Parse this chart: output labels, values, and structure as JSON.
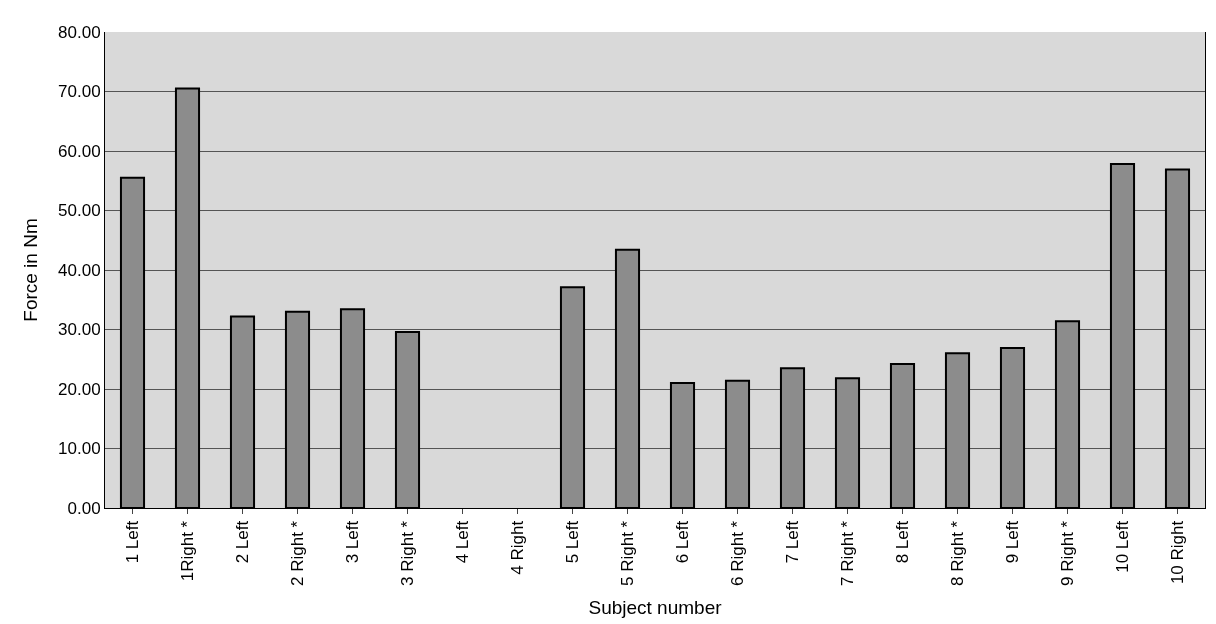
{
  "chart_data": {
    "type": "bar",
    "xlabel": "Subject number",
    "ylabel": "Force in Nm",
    "categories": [
      "1 Left",
      "1Right *",
      "2 Left",
      "2 Right *",
      "3 Left",
      "3 Right *",
      "4 Left",
      "4 Right",
      "5 Left",
      "5 Right *",
      "6 Left",
      "6 Right *",
      "7 Left",
      "7 Right *",
      "8 Left",
      "8 Right *",
      "9 Left",
      "9 Right *",
      "10 Left",
      "10 Right"
    ],
    "values": [
      55.5,
      70.5,
      32.2,
      33.0,
      33.4,
      29.6,
      null,
      null,
      37.1,
      43.4,
      21.0,
      21.4,
      23.5,
      21.8,
      24.2,
      26.0,
      26.9,
      31.4,
      57.8,
      56.9
    ],
    "color": "#8c8c8c",
    "ylim": [
      0,
      80
    ],
    "yticks": [
      {
        "value": 0,
        "label": "0.00"
      },
      {
        "value": 10,
        "label": "10.00"
      },
      {
        "value": 20,
        "label": "20.00"
      },
      {
        "value": 30,
        "label": "30.00"
      },
      {
        "value": 40,
        "label": "40.00"
      },
      {
        "value": 50,
        "label": "50.00"
      },
      {
        "value": 60,
        "label": "60.00"
      },
      {
        "value": 70,
        "label": "70.00"
      },
      {
        "value": 80,
        "label": "80.00"
      }
    ],
    "grid": "y"
  }
}
